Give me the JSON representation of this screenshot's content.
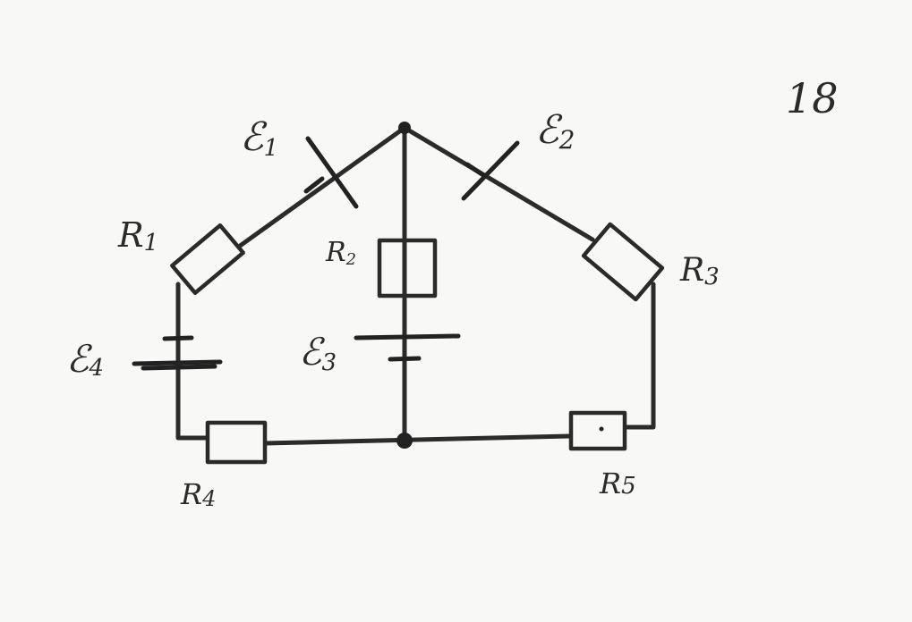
{
  "figure_number": "18",
  "emfs": {
    "e1": {
      "symbol": "ℰ",
      "subscript": "1"
    },
    "e2": {
      "symbol": "ℰ",
      "subscript": "2"
    },
    "e3": {
      "symbol": "ℰ",
      "subscript": "3"
    },
    "e4": {
      "symbol": "ℰ",
      "subscript": "4"
    }
  },
  "resistors": {
    "r1": {
      "symbol": "R",
      "subscript": "1"
    },
    "r2": {
      "symbol": "R",
      "subscript": "2"
    },
    "r3": {
      "symbol": "R",
      "subscript": "3"
    },
    "r4": {
      "symbol": "R",
      "subscript": "4"
    },
    "r5": {
      "symbol": "R",
      "subscript": "5"
    }
  }
}
